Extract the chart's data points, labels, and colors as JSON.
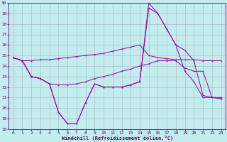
{
  "background_color": "#c2ecee",
  "grid_color": "#b0b0c0",
  "line_color": "#990099",
  "xlim_min": -0.5,
  "xlim_max": 23.5,
  "ylim_min": 18,
  "ylim_max": 30,
  "yticks": [
    18,
    19,
    20,
    21,
    22,
    23,
    24,
    25,
    26,
    27,
    28,
    29,
    30
  ],
  "xticks": [
    0,
    1,
    2,
    3,
    4,
    5,
    6,
    7,
    8,
    9,
    10,
    11,
    12,
    13,
    14,
    15,
    16,
    17,
    18,
    19,
    20,
    21,
    22,
    23
  ],
  "xlabel": "Windchill (Refroidissement éolien,°C)",
  "line1_y": [
    24.8,
    24.5,
    24.5,
    24.6,
    24.6,
    24.7,
    24.8,
    24.9,
    25.0,
    25.1,
    25.2,
    25.4,
    25.6,
    25.8,
    26.0,
    25.0,
    24.8,
    24.7,
    24.6,
    24.6,
    24.6,
    24.5,
    24.5,
    24.5
  ],
  "line2_y": [
    24.8,
    24.5,
    23.0,
    22.8,
    22.3,
    22.2,
    22.2,
    22.3,
    22.5,
    22.8,
    23.0,
    23.2,
    23.5,
    23.7,
    24.0,
    24.2,
    24.5,
    24.5,
    24.5,
    23.8,
    23.5,
    23.5,
    21.0,
    20.9
  ],
  "line3_y": [
    24.8,
    24.5,
    23.0,
    22.8,
    22.3,
    19.6,
    18.5,
    18.5,
    20.5,
    22.3,
    22.0,
    22.0,
    22.0,
    22.2,
    22.5,
    29.5,
    29.0,
    27.5,
    26.0,
    25.5,
    24.5,
    21.2,
    21.0,
    21.0
  ],
  "line4_y": [
    24.8,
    24.5,
    23.0,
    22.8,
    22.3,
    19.6,
    18.5,
    18.5,
    20.5,
    22.3,
    22.0,
    22.0,
    22.0,
    22.2,
    22.5,
    30.0,
    29.0,
    27.5,
    26.0,
    23.5,
    22.5,
    21.0,
    21.0,
    20.9
  ]
}
